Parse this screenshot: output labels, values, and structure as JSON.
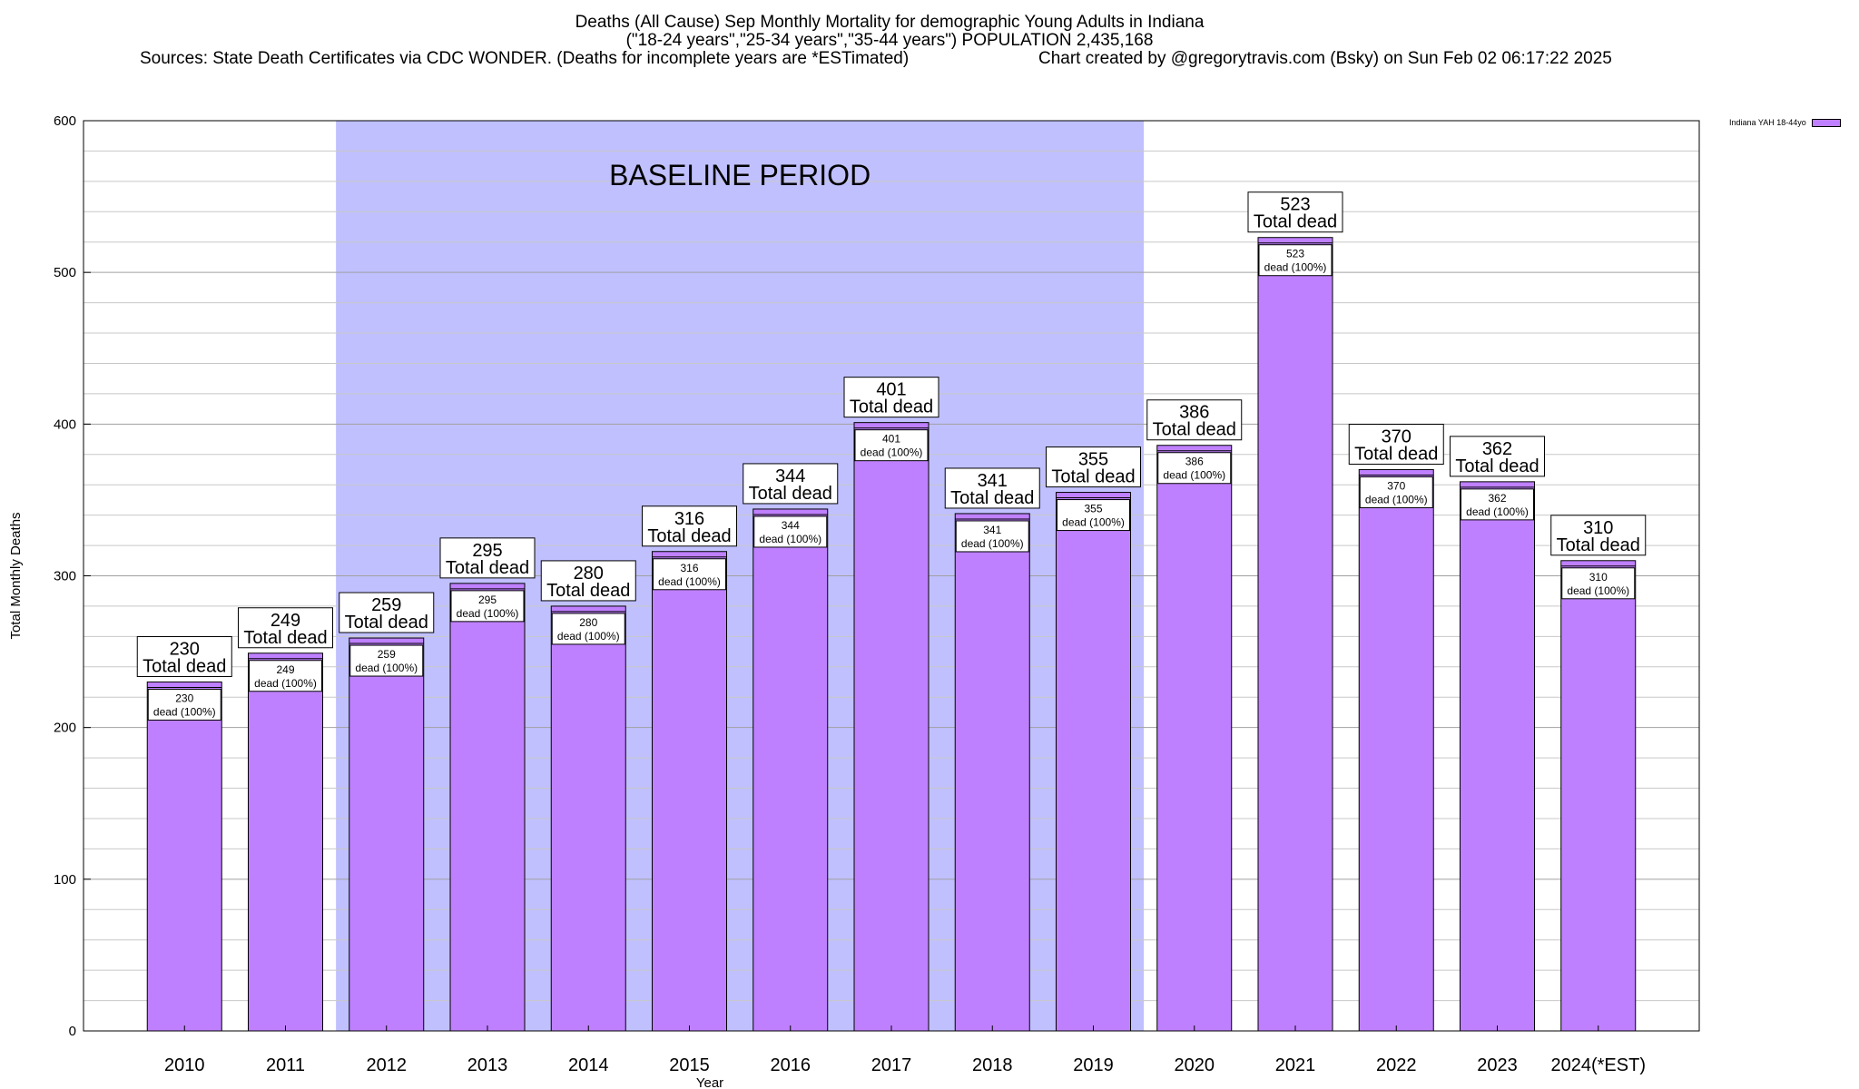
{
  "header": {
    "title": "Deaths (All Cause) Sep Monthly Mortality for demographic Young Adults in Indiana",
    "subtitle": "(\"18-24 years\",\"25-34 years\",\"35-44 years\") POPULATION 2,435,168",
    "source": "Sources: State Death Certificates via CDC WONDER. (Deaths for incomplete years are *ESTimated)",
    "credit": "Chart created by @gregorytravis.com (Bsky) on Sun Feb 02 06:17:22 2025"
  },
  "legend": {
    "label": "Indiana YAH 18-44yo",
    "color": "#bf80ff"
  },
  "colors": {
    "bar": "#bf80ff",
    "baseline": "#c0c0ff",
    "grid": "#a0a0a0"
  },
  "chart_data": {
    "type": "bar",
    "xlabel": "Year",
    "ylabel": "Total Monthly Deaths",
    "ylim": [
      0,
      600
    ],
    "yticks": [
      0,
      100,
      200,
      300,
      400,
      500,
      600
    ],
    "grid": true,
    "legend_position": "top-right",
    "categories": [
      "2010",
      "2011",
      "2012",
      "2013",
      "2014",
      "2015",
      "2016",
      "2017",
      "2018",
      "2019",
      "2020",
      "2021",
      "2022",
      "2023",
      "2024(*EST)"
    ],
    "series": [
      {
        "name": "Indiana YAH 18-44yo",
        "values": [
          230,
          249,
          259,
          295,
          280,
          316,
          344,
          401,
          341,
          355,
          386,
          523,
          370,
          362,
          310
        ]
      }
    ],
    "top_label_suffix": "Total dead",
    "inner_label_suffix": "dead (100%)",
    "baseline_period": {
      "label": "BASELINE PERIOD",
      "start": "2012",
      "end": "2019"
    }
  }
}
